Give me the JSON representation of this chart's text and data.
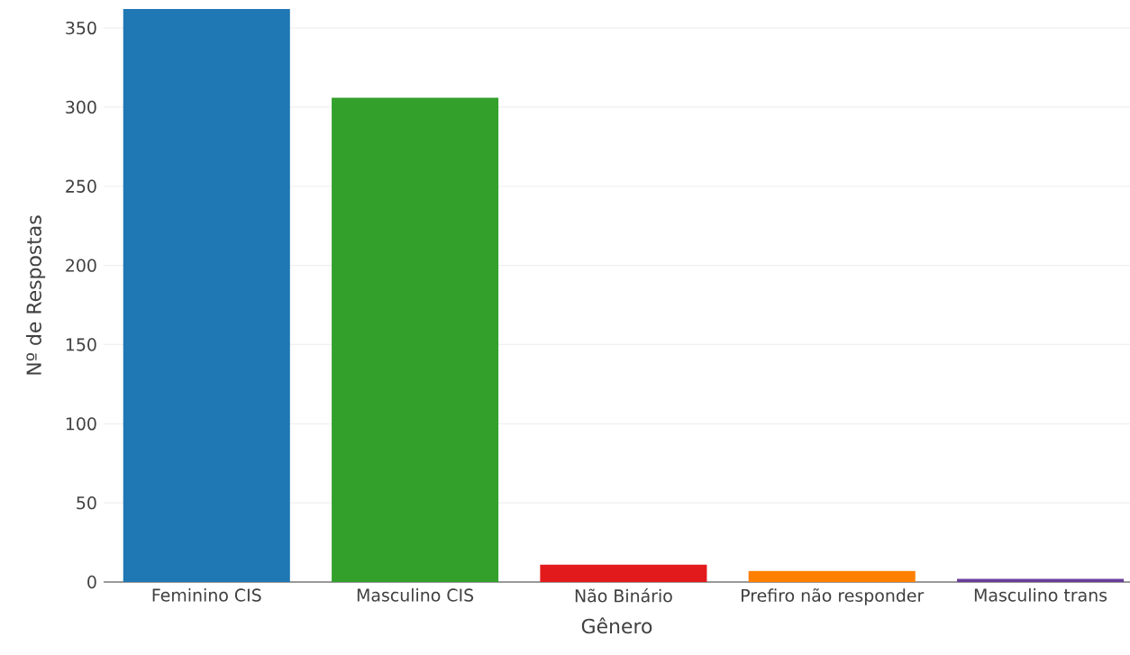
{
  "chart_data": {
    "type": "bar",
    "xlabel": "Gênero",
    "ylabel": "Nº de Respostas",
    "categories": [
      "Feminino CIS",
      "Masculino CIS",
      "Não Binário",
      "Prefiro não responder",
      "Masculino trans"
    ],
    "values": [
      362,
      306,
      11,
      7,
      2
    ],
    "colors": [
      "#1f77b4",
      "#33a02c",
      "#e31a1c",
      "#ff7f00",
      "#6a3d9a"
    ],
    "ylim": [
      0,
      362
    ],
    "yticks": [
      0,
      50,
      100,
      150,
      200,
      250,
      300,
      350
    ],
    "grid": "y"
  }
}
